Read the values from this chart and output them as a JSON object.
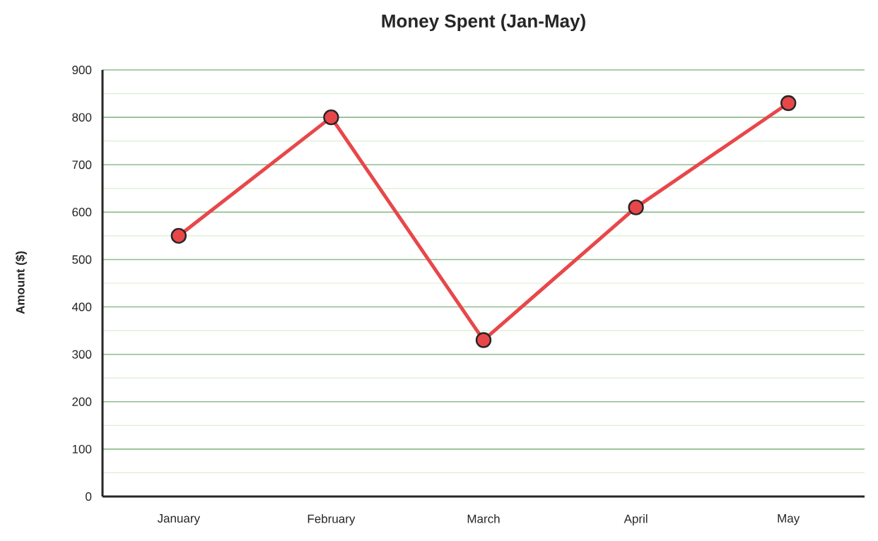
{
  "chart_data": {
    "type": "line",
    "title": "Money Spent (Jan-May)",
    "ylabel": "Amount ($)",
    "categories": [
      "January",
      "February",
      "March",
      "April",
      "May"
    ],
    "series": [
      {
        "color": "#e8474a",
        "values": [
          550,
          800,
          330,
          610,
          830
        ]
      }
    ],
    "ylim": [
      0,
      900
    ],
    "yticks": [
      0,
      100,
      200,
      300,
      400,
      500,
      600,
      700,
      800,
      900
    ],
    "grid": "y",
    "marker": "circle",
    "line_style": "solid"
  }
}
